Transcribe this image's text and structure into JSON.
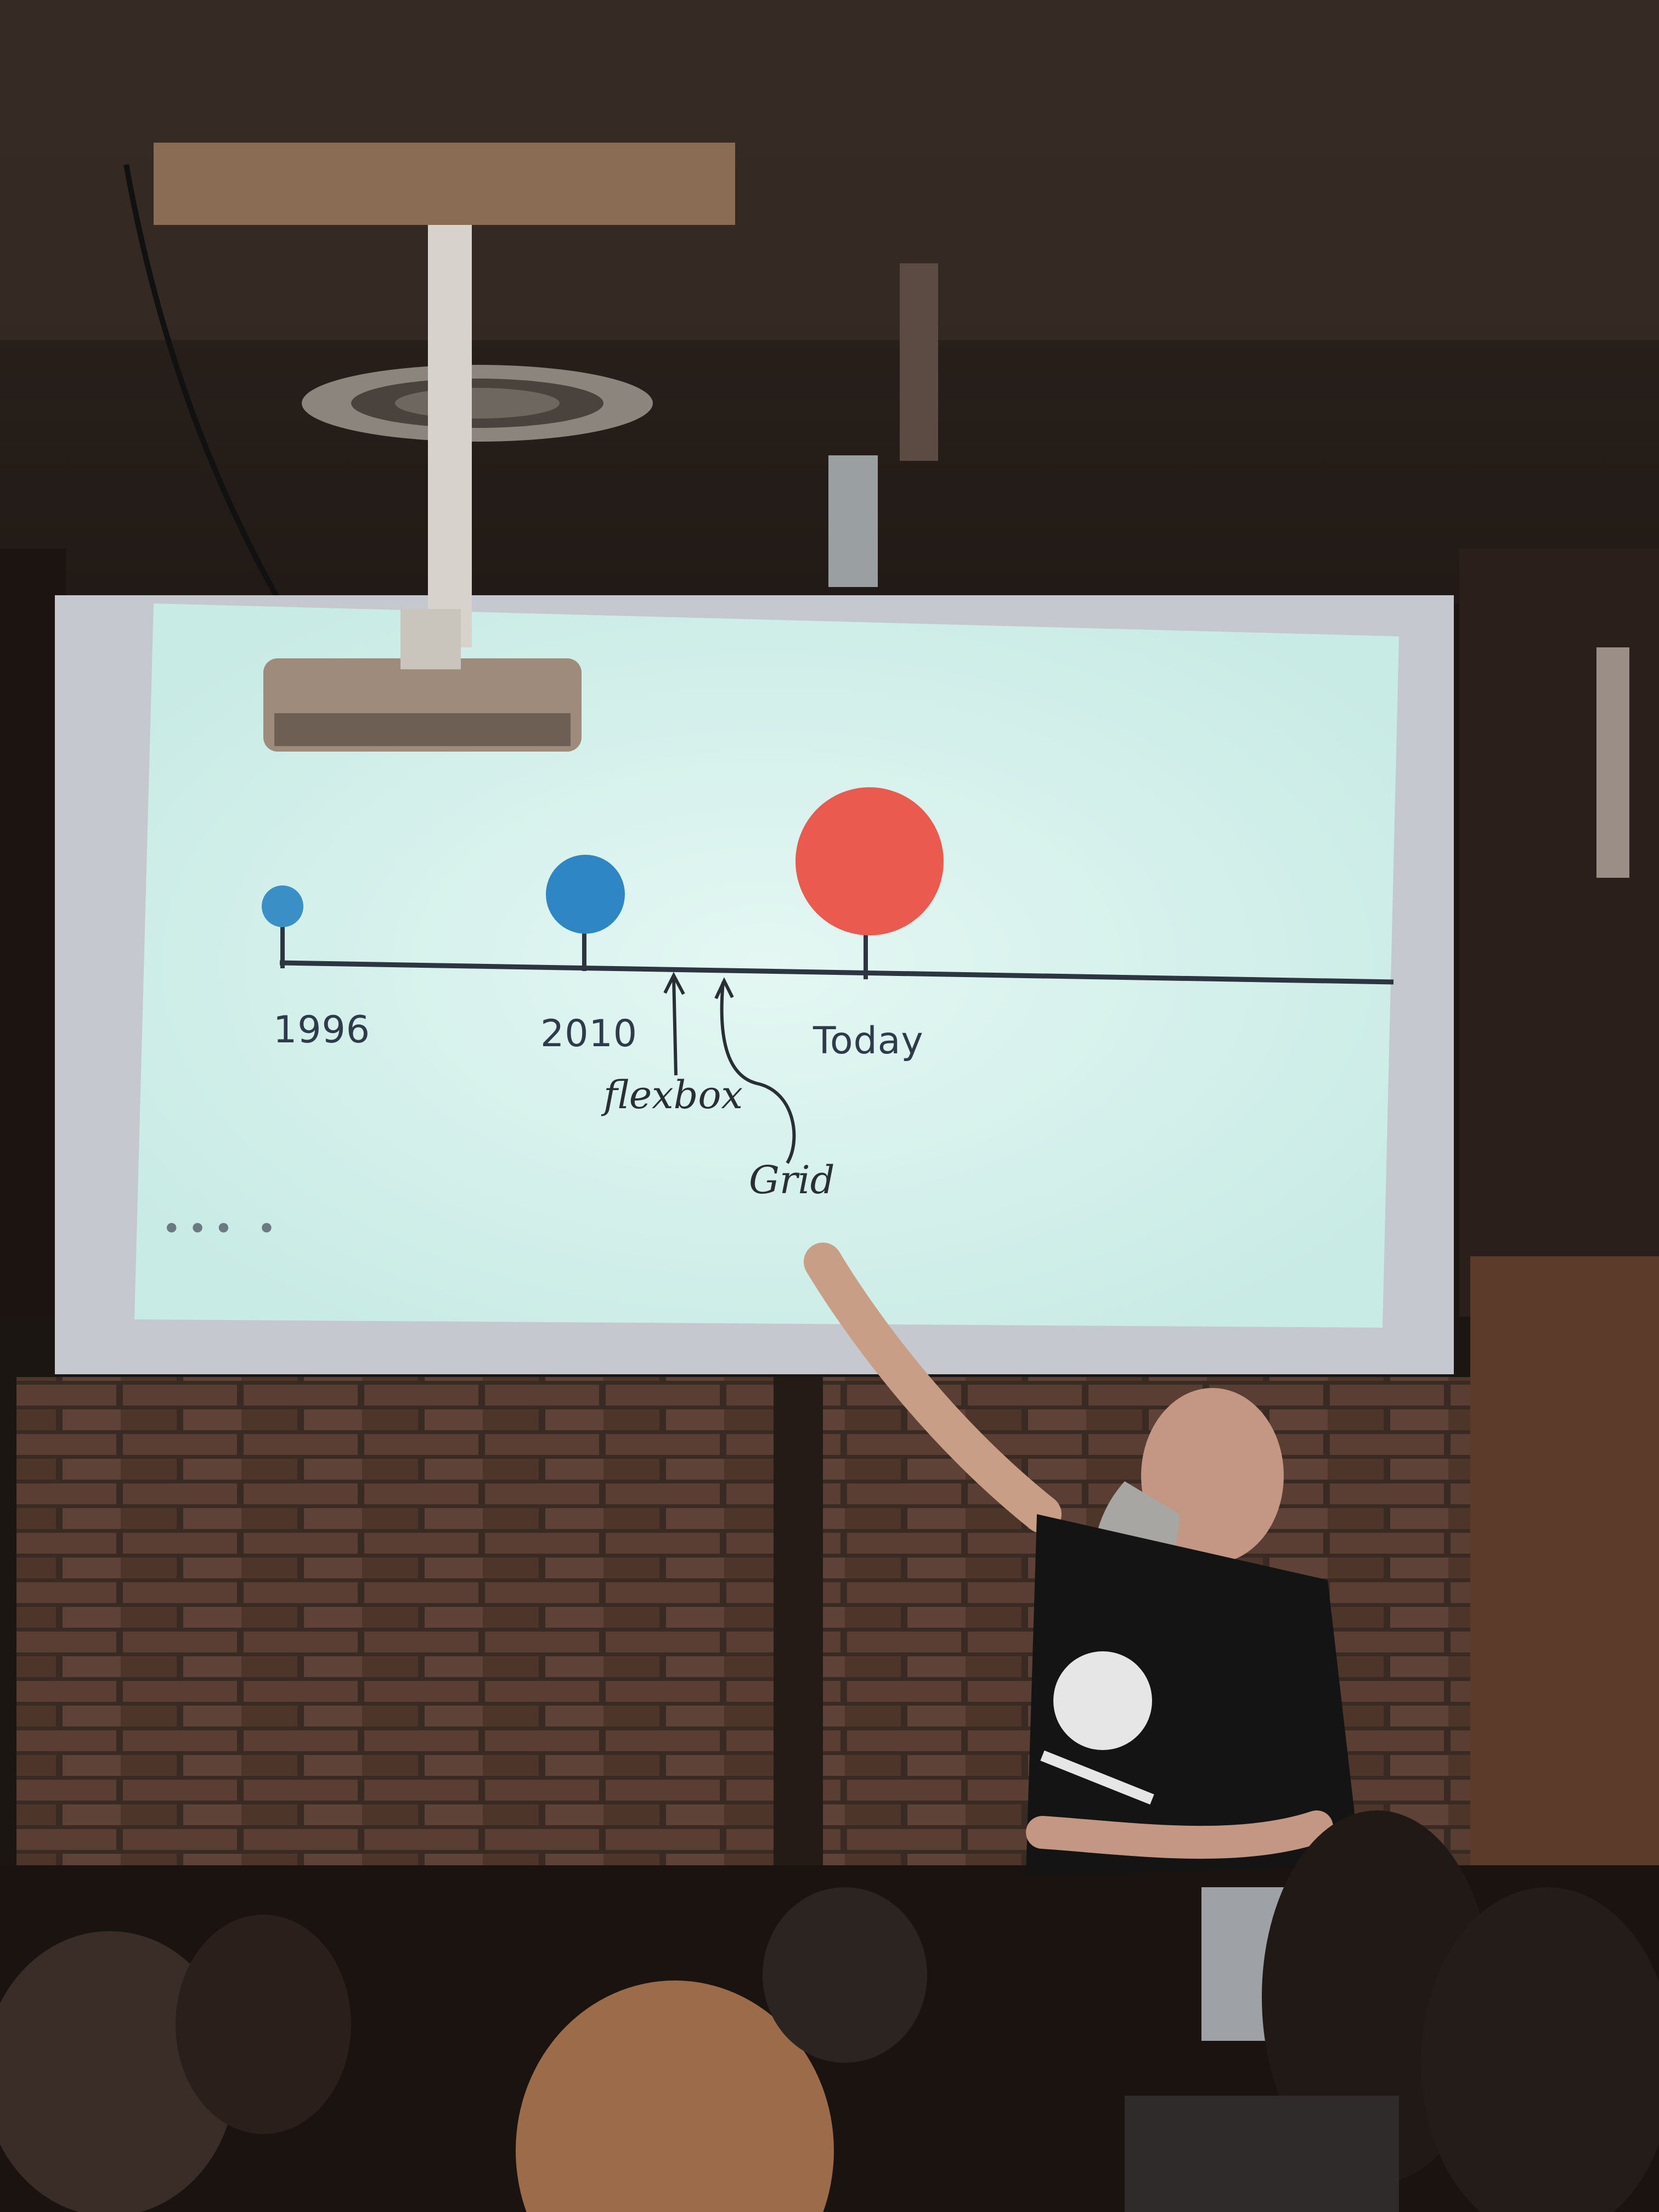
{
  "slide": {
    "timeline_labels": [
      "1996",
      "2010",
      "Today"
    ],
    "annotations": {
      "arrow_1": "flexbox",
      "arrow_2": "Grid"
    },
    "page_dots": "••• •",
    "colors": {
      "small_circle": "#3a8fc7",
      "mid_circle": "#2f86c4",
      "large_circle": "#ea5a4e",
      "screen_bg": "#d8f1ec"
    }
  }
}
